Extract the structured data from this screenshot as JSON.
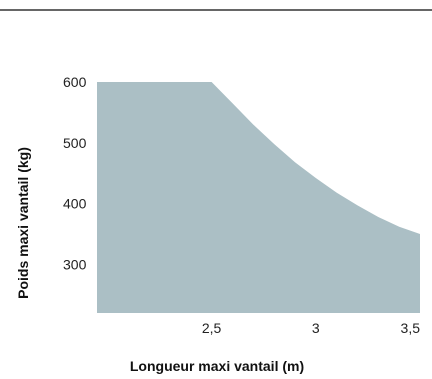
{
  "chart_data": {
    "type": "area",
    "xlabel": "Longueur maxi vantail (m)",
    "ylabel": "Poids maxi vantail (kg)",
    "x_ticks": [
      {
        "value": 2.5,
        "label": "2,5"
      },
      {
        "value": 3,
        "label": "3"
      },
      {
        "value": 3.5,
        "label": "3,5"
      }
    ],
    "y_ticks": [
      {
        "value": 600,
        "label": "600"
      },
      {
        "value": 500,
        "label": "500"
      },
      {
        "value": 400,
        "label": "400"
      },
      {
        "value": 300,
        "label": "300"
      }
    ],
    "xlim": [
      1.95,
      3.5
    ],
    "ylim": [
      220,
      600
    ],
    "series": [
      {
        "x": [
          1.95,
          2.5,
          2.6,
          2.7,
          2.8,
          2.9,
          3.0,
          3.1,
          3.2,
          3.3,
          3.4,
          3.5
        ],
        "y": [
          600,
          600,
          565,
          530,
          498,
          468,
          442,
          418,
          397,
          378,
          362,
          350
        ]
      }
    ],
    "fill_color": "#abbfc5",
    "rule_color": "#333333",
    "grid": false
  }
}
